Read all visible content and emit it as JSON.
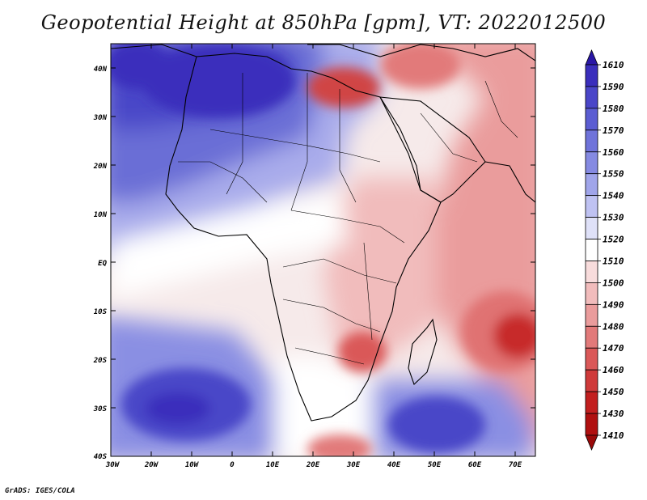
{
  "title": "Geopotential Height at 850hPa [gpm], VT: 2022012500",
  "footer": "GrADS: IGES/COLA",
  "map": {
    "lat_labels": [
      "40N",
      "30N",
      "20N",
      "10N",
      "EQ",
      "10S",
      "20S",
      "30S",
      "40S"
    ],
    "lon_labels": [
      "30W",
      "20W",
      "10W",
      "0",
      "10E",
      "20E",
      "30E",
      "40E",
      "50E",
      "60E",
      "70E"
    ]
  },
  "colorbar": {
    "levels": [
      "1610",
      "1590",
      "1580",
      "1570",
      "1560",
      "1550",
      "1540",
      "1530",
      "1520",
      "1510",
      "1500",
      "1490",
      "1480",
      "1470",
      "1460",
      "1450",
      "1430",
      "1410"
    ],
    "colors": [
      "#2a17a6",
      "#3a2ebc",
      "#4a46c8",
      "#5b5dd2",
      "#6f73da",
      "#858ae2",
      "#a0a5ea",
      "#bfc2f2",
      "#dfe1f8",
      "#ffffff",
      "#f8dcdc",
      "#f1bcbc",
      "#ea9c9c",
      "#e27a7a",
      "#da5858",
      "#cf3a3a",
      "#c21f1f",
      "#b01010",
      "#9a0a0a"
    ]
  }
}
